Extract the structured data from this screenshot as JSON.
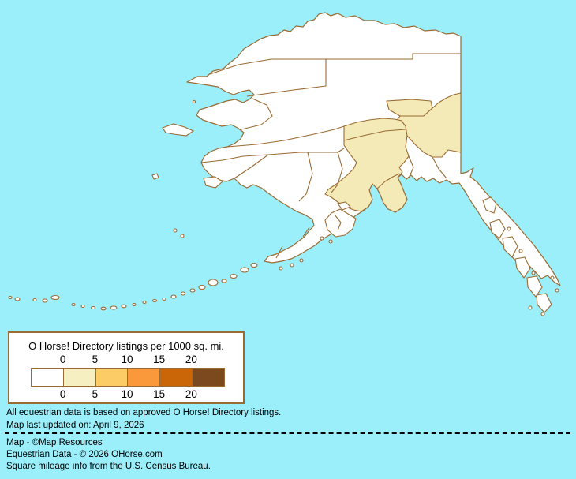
{
  "map": {
    "name": "Alaska equestrian listings choropleth",
    "sea_color": "#9AEFFA",
    "land_color": "#FFFFFF",
    "boundary_color": "#9A6A33",
    "highlight_color": "#F4EAB8"
  },
  "legend": {
    "title": "O Horse! Directory listings per 1000 sq. mi.",
    "tick_labels_top": [
      "0",
      "5",
      "10",
      "15",
      "20"
    ],
    "tick_labels_bottom": [
      "0",
      "5",
      "10",
      "15",
      "20"
    ],
    "swatches": [
      "#FFFFFF",
      "#F6EFC2",
      "#FCCC66",
      "#F9993B",
      "#CB6608",
      "#7C491E"
    ]
  },
  "notes": {
    "line1": "All equestrian data is based on approved O Horse! Directory listings.",
    "line2": "Map last updated on: April 9, 2026"
  },
  "credits": {
    "line1": "Map - ©Map Resources",
    "line2": "Equestrian Data - © 2026 OHorse.com",
    "line3": "Square mileage info from the U.S. Census Bureau."
  }
}
